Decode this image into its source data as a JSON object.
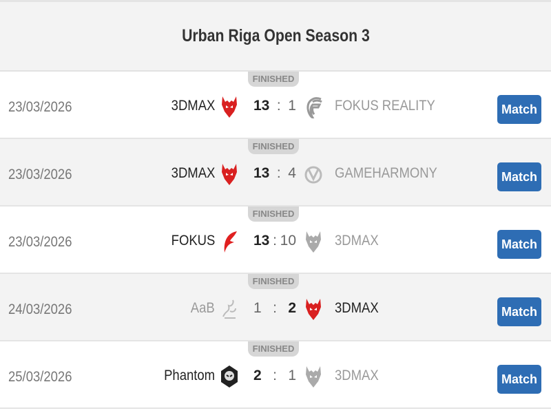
{
  "title": "Urban Riga Open Season 3",
  "colors": {
    "button": "#2e6db4",
    "devil": "#d92020"
  },
  "matches": [
    {
      "status": "FINISHED",
      "date": "23/03/2026",
      "home": "3DMAX",
      "home_logo": "red-devil-icon",
      "home_score": "13",
      "away_score": "1",
      "away": "FOKUS REALITY",
      "away_logo": "fokus-f-icon",
      "winner": "home",
      "button": "Match"
    },
    {
      "status": "FINISHED",
      "date": "23/03/2026",
      "home": "3DMAX",
      "home_logo": "red-devil-icon",
      "home_score": "13",
      "away_score": "4",
      "away": "GAMEHARMONY",
      "away_logo": "gameharmony-icon",
      "winner": "home",
      "button": "Match"
    },
    {
      "status": "FINISHED",
      "date": "23/03/2026",
      "home": "FOKUS",
      "home_logo": "red-fokus-icon",
      "home_score": "13",
      "away_score": "10",
      "away": "3DMAX",
      "away_logo": "gray-devil-icon",
      "winner": "home",
      "button": "Match"
    },
    {
      "status": "FINISHED",
      "date": "24/03/2026",
      "home": "AaB",
      "home_logo": "aab-icon",
      "home_score": "1",
      "away_score": "2",
      "away": "3DMAX",
      "away_logo": "red-devil-icon",
      "winner": "away",
      "button": "Match"
    },
    {
      "status": "FINISHED",
      "date": "25/03/2026",
      "home": "Phantom",
      "home_logo": "phantom-icon",
      "home_score": "2",
      "away_score": "1",
      "away": "3DMAX",
      "away_logo": "gray-devil-icon",
      "winner": "home",
      "button": "Match"
    }
  ]
}
